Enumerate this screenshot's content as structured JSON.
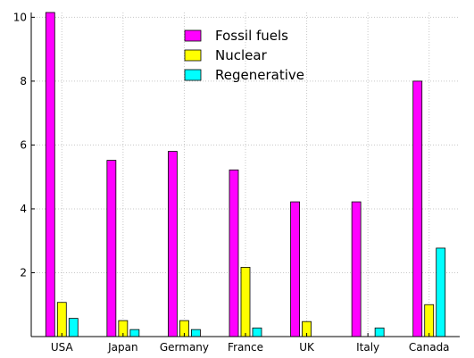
{
  "chart_data": {
    "type": "bar",
    "categories": [
      "USA",
      "Japan",
      "Germany",
      "France",
      "UK",
      "Italy",
      "Canada"
    ],
    "series": [
      {
        "name": "Fossil fuels",
        "color": "#ff00ff",
        "values": [
          10.15,
          5.52,
          5.8,
          5.22,
          4.22,
          4.22,
          8.0
        ]
      },
      {
        "name": "Nuclear",
        "color": "#ffff00",
        "values": [
          1.07,
          0.5,
          0.5,
          2.17,
          0.47,
          0,
          1.0
        ]
      },
      {
        "name": "Regenerative",
        "color": "#00ffff",
        "values": [
          0.57,
          0.22,
          0.22,
          0.27,
          0,
          0.27,
          2.77
        ]
      }
    ],
    "y_ticks": [
      "2",
      "4",
      "6",
      "8",
      "10"
    ],
    "ylim": [
      0,
      10.15
    ],
    "grid": true,
    "legend_position": "top-center"
  }
}
